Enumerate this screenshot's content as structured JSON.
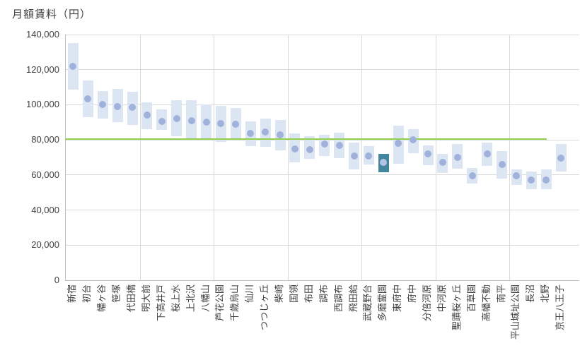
{
  "chart_data": {
    "type": "bar",
    "subtype": "floating-range-bars-with-dot-markers",
    "title": "月額賃料（円）",
    "categories": [
      "新宿",
      "初台",
      "幡ヶ谷",
      "笹塚",
      "代田橋",
      "明大前",
      "下高井戸",
      "桜上水",
      "上北沢",
      "八幡山",
      "芦花公園",
      "千歳烏山",
      "仙川",
      "つつじヶ丘",
      "柴崎",
      "国領",
      "布田",
      "調布",
      "西調布",
      "飛田給",
      "武蔵野台",
      "多磨霊園",
      "東府中",
      "府中",
      "分倍河原",
      "中河原",
      "聖蹟桜ヶ丘",
      "百草園",
      "高幡不動",
      "南平",
      "平山城址公園",
      "長沼",
      "北野",
      "京王八王子"
    ],
    "series": [
      {
        "name": "range_low",
        "values": [
          108500,
          93000,
          92000,
          90000,
          88500,
          86000,
          85500,
          82000,
          80000,
          81000,
          79000,
          80000,
          76500,
          76000,
          74000,
          67000,
          69000,
          71000,
          69500,
          63000,
          66000,
          61500,
          66500,
          72500,
          65500,
          61000,
          63500,
          55000,
          65000,
          58000,
          54500,
          52000,
          52000,
          62000
        ]
      },
      {
        "name": "range_high",
        "values": [
          135000,
          114000,
          108000,
          109000,
          107500,
          101500,
          97500,
          102500,
          102500,
          100000,
          99500,
          98000,
          90500,
          92000,
          91500,
          83500,
          82000,
          83000,
          84000,
          78500,
          76500,
          72000,
          88000,
          86000,
          77000,
          72000,
          77500,
          64000,
          78500,
          73500,
          63000,
          62000,
          63000,
          77500
        ]
      },
      {
        "name": "dot",
        "values": [
          122000,
          103500,
          100000,
          99000,
          98500,
          94000,
          90500,
          92000,
          91000,
          90000,
          89500,
          89000,
          83500,
          84500,
          83000,
          75000,
          74500,
          77500,
          77000,
          71000,
          71000,
          67000,
          78000,
          80000,
          72000,
          67000,
          70000,
          59500,
          72000,
          66000,
          59500,
          57000,
          57000,
          69500
        ]
      }
    ],
    "highlighted_category": "多磨霊園",
    "reference_line": {
      "value": 80600,
      "color": "#92d050"
    },
    "y_ticks": [
      "0",
      "20,000",
      "40,000",
      "60,000",
      "80,000",
      "100,000",
      "120,000",
      "140,000"
    ],
    "ytick_interval": 20000,
    "ylim": [
      0,
      140000
    ],
    "xlabel": "",
    "ylabel": "月額賃料（円）",
    "grid": true,
    "legend": "none",
    "colors": {
      "bar": "#dce6f2",
      "dot": "#a0b1db",
      "highlight_bar": "#44859e",
      "highlight_dot": "#b5c3e7",
      "gridline": "#d9d9d9",
      "axis": "#bfbfbf",
      "text": "#404040"
    }
  }
}
